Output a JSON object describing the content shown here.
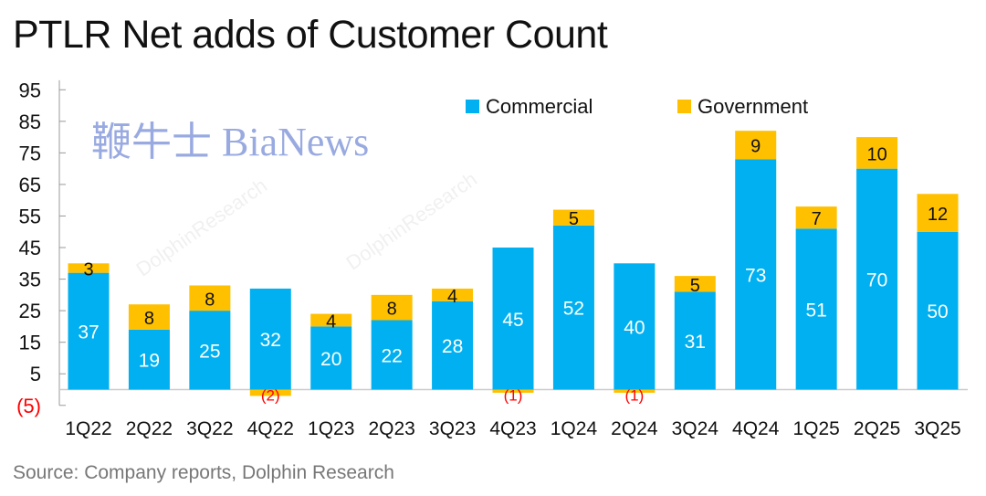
{
  "chart_data": {
    "type": "bar",
    "stacked": true,
    "title": "PTLR Net adds of Customer Count",
    "source": "Source:  Company reports, Dolphin Research",
    "categories": [
      "1Q22",
      "2Q22",
      "3Q22",
      "4Q22",
      "1Q23",
      "2Q23",
      "3Q23",
      "4Q23",
      "1Q24",
      "2Q24",
      "3Q24",
      "4Q24",
      "1Q25",
      "2Q25",
      "3Q25"
    ],
    "series": [
      {
        "name": "Commercial",
        "color": "#00b0f0",
        "values": [
          37,
          19,
          25,
          32,
          20,
          22,
          28,
          45,
          52,
          40,
          31,
          73,
          51,
          70,
          50
        ]
      },
      {
        "name": "Government",
        "color": "#ffc000",
        "values": [
          3,
          8,
          8,
          -2,
          4,
          8,
          4,
          -1,
          5,
          -1,
          5,
          9,
          7,
          10,
          12
        ]
      }
    ],
    "yticks": [
      {
        "value": 95,
        "label": "95"
      },
      {
        "value": 85,
        "label": "85"
      },
      {
        "value": 75,
        "label": "75"
      },
      {
        "value": 65,
        "label": "65"
      },
      {
        "value": 55,
        "label": "55"
      },
      {
        "value": 45,
        "label": "45"
      },
      {
        "value": 35,
        "label": "35"
      },
      {
        "value": 25,
        "label": "25"
      },
      {
        "value": 15,
        "label": "15"
      },
      {
        "value": 5,
        "label": "5"
      },
      {
        "value": -5,
        "label": "(5)"
      }
    ],
    "ylim": [
      -5,
      95
    ],
    "grid": false,
    "legend_position": "top-right",
    "negative_label_color": "#ff0000"
  },
  "watermarks": [
    "DolphinResearch",
    "鞭牛士 BiaNews"
  ]
}
